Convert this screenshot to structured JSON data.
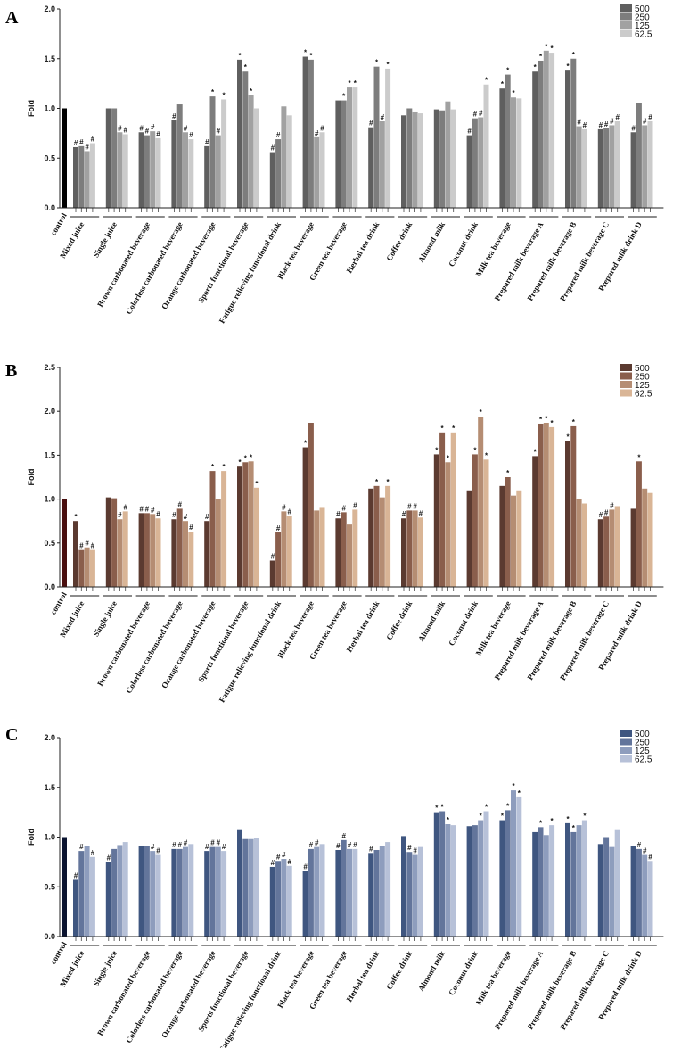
{
  "chart_data": [
    {
      "panel": "A",
      "type": "bar",
      "ylabel": "Fold",
      "ylim": [
        0,
        2.0
      ],
      "yticks": [
        "0.0",
        "0.5",
        "1.0",
        "1.5",
        "2.0"
      ],
      "legend": [
        "500",
        "250",
        "125",
        "62.5"
      ],
      "colors": [
        "#5f5f5f",
        "#7d7d7d",
        "#a1a1a1",
        "#cbcbcb"
      ],
      "control": {
        "label": "control",
        "value": 1.0,
        "color": "#000000"
      },
      "categories": [
        "Mixed juice",
        "Single juice",
        "Brown carbonated beverage",
        "Colorless carbonated beverage",
        "Orange carbonated beverage",
        "Sports functional beverage",
        "Fatigue relieving functional drink",
        "Black tea beverage",
        "Green tea beverage",
        "Herbal tea drink",
        "Coffee drink",
        "Almond milk",
        "Coconut drink",
        "Milk tea beverage",
        "Prepared milk beverage A",
        "Prepared milk beverage B",
        "Prepared milk beverage C",
        "Prepared milk drink D"
      ],
      "values": [
        [
          0.61,
          0.62,
          0.57,
          0.65
        ],
        [
          1.0,
          1.0,
          0.76,
          0.74
        ],
        [
          0.76,
          0.73,
          0.77,
          0.7
        ],
        [
          0.88,
          1.04,
          0.76,
          0.69
        ],
        [
          0.62,
          1.12,
          0.73,
          1.09
        ],
        [
          1.49,
          1.37,
          1.13,
          1.0
        ],
        [
          0.56,
          0.69,
          1.02,
          0.93
        ],
        [
          1.52,
          1.49,
          0.71,
          0.76
        ],
        [
          1.08,
          1.08,
          1.21,
          1.21
        ],
        [
          0.81,
          1.42,
          0.87,
          1.4
        ],
        [
          0.93,
          1.0,
          0.96,
          0.95
        ],
        [
          0.99,
          0.98,
          1.07,
          0.99
        ],
        [
          0.73,
          0.9,
          0.91,
          1.24
        ],
        [
          1.2,
          1.34,
          1.11,
          1.1
        ],
        [
          1.37,
          1.48,
          1.58,
          1.56
        ],
        [
          1.38,
          1.5,
          0.82,
          0.79
        ],
        [
          0.79,
          0.8,
          0.83,
          0.87
        ],
        [
          0.76,
          1.05,
          0.83,
          0.87
        ]
      ],
      "marks": [
        [
          "#",
          "#",
          "#",
          "#"
        ],
        [
          "",
          "",
          "#",
          "#"
        ],
        [
          "#",
          "#",
          "#",
          "#"
        ],
        [
          "#",
          "",
          "#",
          "#"
        ],
        [
          "#",
          "*",
          "#",
          "*"
        ],
        [
          "*",
          "*",
          "*",
          ""
        ],
        [
          "#",
          "#",
          "",
          ""
        ],
        [
          "*",
          "*",
          "#",
          "#"
        ],
        [
          "",
          "*",
          "*",
          "*"
        ],
        [
          "#",
          "*",
          "#",
          "*"
        ],
        [
          "",
          "",
          "",
          ""
        ],
        [
          "",
          "",
          "",
          ""
        ],
        [
          "#",
          "#",
          "#",
          "*"
        ],
        [
          "*",
          "*",
          "*",
          ""
        ],
        [
          "*",
          "*",
          "*",
          "*"
        ],
        [
          "*",
          "*",
          "#",
          "#"
        ],
        [
          "#",
          "#",
          "#",
          "#"
        ],
        [
          "#",
          "",
          "#",
          "#"
        ]
      ]
    },
    {
      "panel": "B",
      "type": "bar",
      "ylabel": "Fold",
      "ylim": [
        0,
        2.5
      ],
      "yticks": [
        "0.0",
        "0.5",
        "1.0",
        "1.5",
        "2.0",
        "2.5"
      ],
      "legend": [
        "500",
        "250",
        "125",
        "62.5"
      ],
      "colors": [
        "#5b3a30",
        "#8a5e4c",
        "#b58d73",
        "#d9b596"
      ],
      "control": {
        "label": "control",
        "value": 1.0,
        "color": "#4a0f0f"
      },
      "categories": [
        "Mixed juice",
        "Single juice",
        "Brown carbonated beverage",
        "Colorless carbonated beverage",
        "Orange carbonated beverage",
        "Sports functional beverage",
        "Fatigue relieving functional drink",
        "Black tea beverage",
        "Green tea beverage",
        "Herbal tea drink",
        "Coffee drink",
        "Almond milk",
        "Coconut drink",
        "Milk tea beverage",
        "Prepared milk beverage A",
        "Prepared milk beverage B",
        "Prepared milk beverage C",
        "Prepared milk drink D"
      ],
      "values": [
        [
          0.75,
          0.42,
          0.45,
          0.42
        ],
        [
          1.02,
          1.01,
          0.77,
          0.86
        ],
        [
          0.84,
          0.84,
          0.83,
          0.78
        ],
        [
          0.77,
          0.89,
          0.75,
          0.63
        ],
        [
          0.75,
          1.32,
          1.0,
          1.32
        ],
        [
          1.37,
          1.42,
          1.43,
          1.13
        ],
        [
          0.3,
          0.62,
          0.86,
          0.81
        ],
        [
          1.59,
          1.87,
          0.87,
          0.9
        ],
        [
          0.78,
          0.85,
          0.71,
          0.88
        ],
        [
          1.12,
          1.15,
          1.02,
          1.15
        ],
        [
          0.78,
          0.87,
          0.87,
          0.79
        ],
        [
          1.51,
          1.76,
          1.42,
          1.76
        ],
        [
          1.1,
          1.51,
          1.94,
          1.45
        ],
        [
          1.15,
          1.25,
          1.04,
          1.1
        ],
        [
          1.49,
          1.86,
          1.87,
          1.82
        ],
        [
          1.66,
          1.83,
          1.0,
          0.95
        ],
        [
          0.77,
          0.8,
          0.88,
          0.92
        ],
        [
          0.89,
          1.43,
          1.12,
          1.07
        ]
      ],
      "marks": [
        [
          "*",
          "#",
          "#",
          "#"
        ],
        [
          "",
          "",
          "#",
          "#"
        ],
        [
          "#",
          "#",
          "#",
          "#"
        ],
        [
          "#",
          "#",
          "#",
          "#"
        ],
        [
          "#",
          "*",
          "",
          "*"
        ],
        [
          "*",
          "*",
          "*",
          "*"
        ],
        [
          "#",
          "#",
          "#",
          "#"
        ],
        [
          "*",
          "",
          "",
          ""
        ],
        [
          "#",
          "#",
          "",
          "#"
        ],
        [
          "",
          "*",
          "",
          "*"
        ],
        [
          "#",
          "#",
          "#",
          "#"
        ],
        [
          "*",
          "*",
          "*",
          "*"
        ],
        [
          "",
          "*",
          "*",
          "*"
        ],
        [
          "",
          "*",
          "",
          ""
        ],
        [
          "*",
          "*",
          "*",
          "*"
        ],
        [
          "*",
          "*",
          "",
          ""
        ],
        [
          "#",
          "#",
          "#",
          ""
        ],
        [
          "",
          "*",
          "",
          ""
        ]
      ]
    },
    {
      "panel": "C",
      "type": "bar",
      "ylabel": "Fold",
      "ylim": [
        0,
        2.0
      ],
      "yticks": [
        "0.0",
        "0.5",
        "1.0",
        "1.5",
        "2.0"
      ],
      "legend": [
        "500",
        "250",
        "125",
        "62.5"
      ],
      "colors": [
        "#3f5680",
        "#63759b",
        "#8e9dbd",
        "#b7c1d8"
      ],
      "control": {
        "label": "control",
        "value": 1.0,
        "color": "#0b1430"
      },
      "categories": [
        "Mixed juice",
        "Single juice",
        "Brown carbonated beverage",
        "Colorless carbonated beverage",
        "Orange carbonated beverage",
        "Sports functional beverage",
        "Fatigue relieving functional drink",
        "Black tea beverage",
        "Green tea beverage",
        "Herbal tea drink",
        "Coffee drink",
        "Almond milk",
        "Coconut drink",
        "Milk tea beverage",
        "Prepared milk beverage A",
        "Prepared milk beverage B",
        "Prepared milk beverage C",
        "Prepared milk drink D"
      ],
      "values": [
        [
          0.57,
          0.86,
          0.91,
          0.8
        ],
        [
          0.75,
          0.88,
          0.92,
          0.95
        ],
        [
          0.91,
          0.91,
          0.86,
          0.82
        ],
        [
          0.88,
          0.88,
          0.9,
          0.93
        ],
        [
          0.86,
          0.9,
          0.9,
          0.86
        ],
        [
          1.07,
          0.98,
          0.98,
          0.99
        ],
        [
          0.7,
          0.76,
          0.78,
          0.71
        ],
        [
          0.66,
          0.88,
          0.9,
          0.93
        ],
        [
          0.87,
          0.97,
          0.88,
          0.88
        ],
        [
          0.84,
          0.87,
          0.91,
          0.95
        ],
        [
          1.01,
          0.85,
          0.82,
          0.9
        ],
        [
          1.25,
          1.26,
          1.13,
          1.12
        ],
        [
          1.11,
          1.12,
          1.17,
          1.26
        ],
        [
          1.17,
          1.27,
          1.47,
          1.4
        ],
        [
          1.05,
          1.1,
          1.02,
          1.12
        ],
        [
          1.14,
          1.05,
          1.12,
          1.17
        ],
        [
          0.93,
          1.0,
          0.9,
          1.07
        ],
        [
          0.91,
          0.88,
          0.82,
          0.76
        ]
      ],
      "marks": [
        [
          "#",
          "#",
          "",
          "#"
        ],
        [
          "#",
          "",
          "",
          ""
        ],
        [
          "",
          "",
          "#",
          "#"
        ],
        [
          "#",
          "#",
          "#",
          ""
        ],
        [
          "#",
          "#",
          "#",
          "#"
        ],
        [
          "",
          "",
          "",
          ""
        ],
        [
          "#",
          "#",
          "#",
          "#"
        ],
        [
          "#",
          "#",
          "#",
          ""
        ],
        [
          "#",
          "#",
          "#",
          "#"
        ],
        [
          "#",
          "",
          "",
          ""
        ],
        [
          "",
          "#",
          "#",
          ""
        ],
        [
          "*",
          "*",
          "*",
          ""
        ],
        [
          "",
          "",
          "*",
          "*"
        ],
        [
          "*",
          "*",
          "*",
          "*"
        ],
        [
          "",
          "*",
          "",
          "*"
        ],
        [
          "*",
          "*",
          "",
          "*"
        ],
        [
          "",
          "",
          "",
          ""
        ],
        [
          "",
          "#",
          "#",
          "#"
        ]
      ]
    }
  ]
}
